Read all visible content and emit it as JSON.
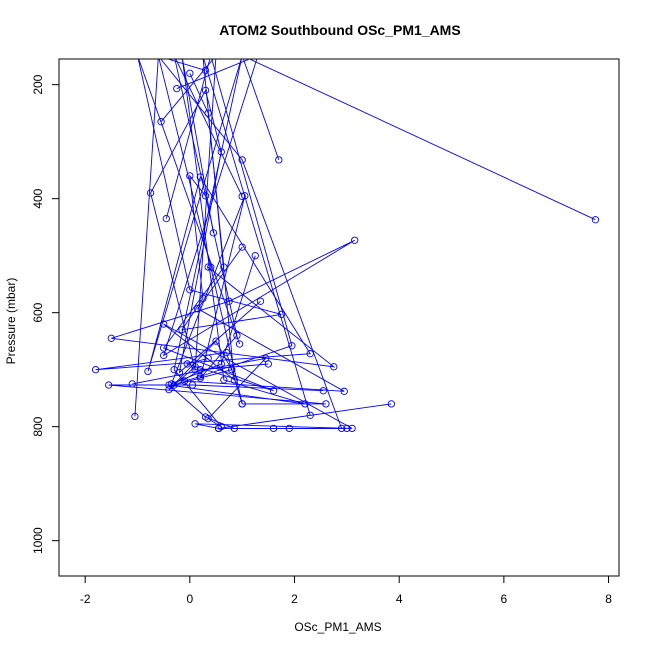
{
  "chart_data": {
    "type": "line",
    "title": "ATOM2 Southbound OSc_PM1_AMS",
    "xlabel": "OSc_PM1_AMS",
    "ylabel": "Pressure (mbar)",
    "xlim": [
      -2.5,
      8.2
    ],
    "ylim": [
      1062,
      155
    ],
    "y_reversed": true,
    "x_ticks": [
      -2,
      0,
      2,
      4,
      6,
      8
    ],
    "x_tick_labels": [
      "-2",
      "0",
      "2",
      "4",
      "6",
      "8"
    ],
    "y_ticks": [
      200,
      400,
      600,
      800,
      1000
    ],
    "y_tick_labels": [
      "200",
      "400",
      "600",
      "800",
      "1000"
    ],
    "grid": false,
    "legend": "none",
    "line_color": "#0000ff",
    "marker": "open-circle",
    "series": [
      {
        "x": [
          7.75,
          1.0,
          -0.3,
          0.6,
          0.35,
          1.45,
          -1.1
        ],
        "y": [
          437,
          149,
          700,
          800,
          786,
          680,
          725
        ]
      },
      {
        "x": [
          -0.25,
          1.3,
          -0.5,
          3.15,
          0.75,
          -1.5,
          2.75,
          0.35
        ],
        "y": [
          207,
          149,
          675,
          473,
          580,
          645,
          695,
          520
        ]
      },
      {
        "x": [
          -0.55,
          0.5,
          0.1,
          -0.75,
          0.3,
          0.6,
          -0.2,
          1.35
        ],
        "y": [
          265,
          149,
          700,
          390,
          210,
          318,
          705,
          580
        ]
      },
      {
        "x": [
          1.7,
          1.0,
          -0.8,
          0.2,
          2.3,
          -1.8,
          0.7,
          1.0
        ],
        "y": [
          332,
          149,
          703,
          362,
          672,
          700,
          670,
          760
        ]
      },
      {
        "x": [
          1.0,
          -0.3,
          0.9,
          0.2,
          1.05,
          -0.35,
          0.6,
          1.25
        ],
        "y": [
          396,
          149,
          640,
          715,
          395,
          725,
          690,
          500
        ]
      },
      {
        "x": [
          -0.45,
          0.4,
          1.95,
          0.2,
          -0.1,
          2.95,
          0.15,
          1.0
        ],
        "y": [
          435,
          149,
          658,
          712,
          720,
          738,
          593,
          485
        ]
      },
      {
        "x": [
          0.95,
          -1.0,
          0.0,
          1.75,
          -0.15,
          0.25,
          0.0,
          0.3
        ],
        "y": [
          655,
          149,
          560,
          603,
          630,
          575,
          360,
          395
        ]
      },
      {
        "x": [
          2.3,
          0.25,
          0.85,
          -0.5,
          3.1,
          0.1,
          0.55,
          3.85
        ],
        "y": [
          780,
          150,
          718,
          620,
          803,
          795,
          803,
          760
        ]
      },
      {
        "x": [
          0.3,
          -0.6,
          1.0,
          2.9,
          1.6,
          1.9,
          0.55
        ],
        "y": [
          175,
          150,
          332,
          803,
          803,
          803,
          803
        ]
      },
      {
        "x": [
          0.45,
          -0.15,
          0.65,
          2.2,
          -0.4,
          0.3,
          0.85,
          3.0
        ],
        "y": [
          460,
          150,
          718,
          760,
          727,
          783,
          803,
          803
        ]
      },
      {
        "x": [
          -1.05,
          -0.6,
          0.4,
          1.0,
          2.6,
          -1.55,
          0.05,
          2.55
        ],
        "y": [
          782,
          150,
          520,
          760,
          760,
          727,
          727,
          737
        ]
      },
      {
        "x": [
          0.0,
          0.35,
          0.65,
          -0.5,
          1.6,
          -0.05,
          0.35
        ],
        "y": [
          180,
          250,
          520,
          662,
          737,
          690,
          680
        ]
      },
      {
        "x": [
          1.5,
          0.2,
          -0.4,
          0.5,
          0.8,
          -0.3,
          0.1
        ],
        "y": [
          690,
          700,
          735,
          650,
          700,
          727,
          695
        ]
      }
    ]
  }
}
